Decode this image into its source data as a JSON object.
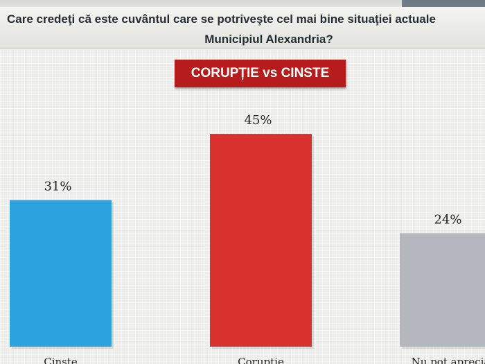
{
  "header": {
    "question_line1": "Care credeţi că este cuvântul care se potriveşte cel mai bine situaţiei actuale",
    "question_line2": "Municipiul Alexandria?"
  },
  "chart_data": {
    "type": "bar",
    "title": "CORUPȚIE vs CINSTE",
    "categories": [
      "Cinste",
      "Corupţie",
      "Nu pot aprecia"
    ],
    "values": [
      31,
      45,
      24
    ],
    "value_labels": [
      "31%",
      "45%",
      "24%"
    ],
    "colors": [
      "#2ca3df",
      "#d9312e",
      "#b4b7bd"
    ],
    "ylim": [
      0,
      100
    ],
    "grid": false,
    "legend": "none"
  }
}
